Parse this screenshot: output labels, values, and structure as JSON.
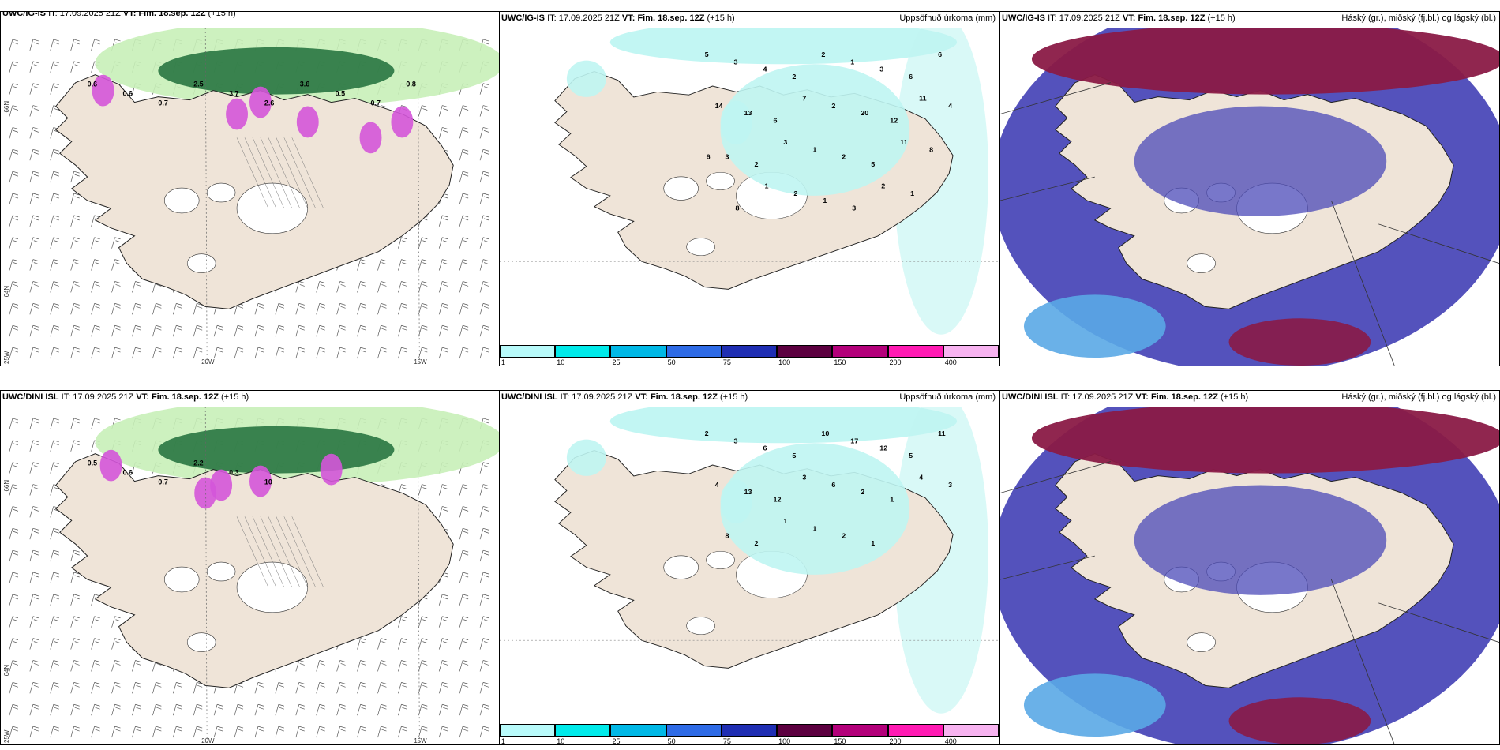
{
  "panels": [
    {
      "model": "UWC/IG-IS",
      "it_label": "IT:",
      "it_value": "17.09.2025 21Z",
      "vt_label": "VT:",
      "vt_value": "Fim. 18.sep. 12Z",
      "lead": "(+15 h)",
      "title": ""
    },
    {
      "model": "UWC/IG-IS",
      "it_label": "IT:",
      "it_value": "17.09.2025 21Z",
      "vt_label": "VT:",
      "vt_value": "Fim. 18.sep. 12Z",
      "lead": "(+15 h)",
      "title": "Uppsöfnuð úrkoma (mm)"
    },
    {
      "model": "UWC/IG-IS",
      "it_label": "IT:",
      "it_value": "17.09.2025 21Z",
      "vt_label": "VT:",
      "vt_value": "Fim. 18.sep. 12Z",
      "lead": "(+15 h)",
      "title": "Háský (gr.), miðský (fj.bl.) og lágský (bl.)"
    },
    {
      "model": "UWC/DINI ISL",
      "it_label": "IT:",
      "it_value": "17.09.2025 21Z",
      "vt_label": "VT:",
      "vt_value": "Fim. 18.sep. 12Z",
      "lead": "(+15 h)",
      "title": ""
    },
    {
      "model": "UWC/DINI ISL",
      "it_label": "IT:",
      "it_value": "17.09.2025 21Z",
      "vt_label": "VT:",
      "vt_value": "Fim. 18.sep. 12Z",
      "lead": "(+15 h)",
      "title": "Uppsöfnuð úrkoma (mm)"
    },
    {
      "model": "UWC/DINI ISL",
      "it_label": "IT:",
      "it_value": "17.09.2025 21Z",
      "vt_label": "VT:",
      "vt_value": "Fim. 18.sep. 12Z",
      "lead": "(+15 h)",
      "title": "Háský (gr.), miðský (fj.bl.) og lágský (bl.)"
    }
  ],
  "axis_ticks": {
    "lat_66": "66N",
    "lat_64": "64N",
    "lon_25": "25W",
    "lon_20": "20W",
    "lon_15": "15W"
  },
  "colorbar": {
    "labels": [
      "1",
      "10",
      "25",
      "50",
      "75",
      "100",
      "150",
      "200",
      "400"
    ],
    "colors": [
      "#b8fafa",
      "#00eaea",
      "#00b8e6",
      "#2e6be6",
      "#1f2eb3",
      "#5c0040",
      "#b3007a",
      "#ff1ab3",
      "#f7b3f0"
    ]
  },
  "colors": {
    "land": "#efe4d8",
    "precip_light": "#bff5f2",
    "cloud_high": "#8a1a46",
    "cloud_mid": "#4b49b8",
    "cloud_low": "#5aa8e6",
    "green_light": "#c8efb8",
    "green_dark": "#1f6e3a",
    "purple": "#d455d9"
  },
  "precip_labels_top": [
    "5",
    "3",
    "4",
    "2",
    "2",
    "1",
    "3",
    "6",
    "6",
    "14",
    "13",
    "6",
    "7",
    "2",
    "20",
    "12",
    "11",
    "4",
    "3",
    "2",
    "3",
    "1",
    "2",
    "5",
    "11",
    "8",
    "6",
    "8",
    "1",
    "2",
    "1",
    "3",
    "2",
    "1"
  ],
  "precip_labels_bottom": [
    "2",
    "3",
    "6",
    "5",
    "10",
    "17",
    "12",
    "5",
    "11",
    "4",
    "13",
    "12",
    "3",
    "6",
    "2",
    "1",
    "4",
    "3",
    "8",
    "2",
    "1",
    "1",
    "2",
    "1"
  ],
  "wind_values_top": [
    "0.6",
    "0.6",
    "0.7",
    "2.5",
    "3.7",
    "2.6",
    "3.6",
    "0.5",
    "0.7",
    "0.8"
  ],
  "wind_values_bottom": [
    "0.5",
    "0.6",
    "0.7",
    "2.2",
    "0.3",
    "10"
  ]
}
